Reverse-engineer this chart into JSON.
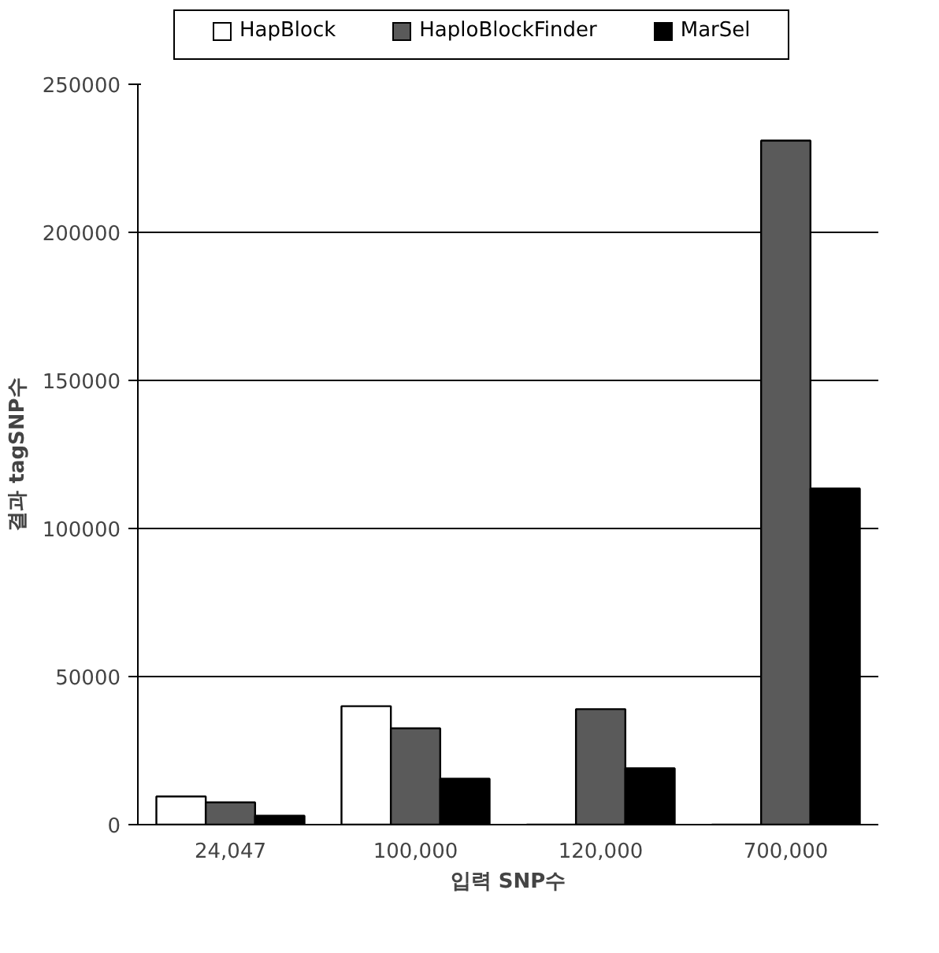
{
  "chart_data": {
    "type": "bar",
    "xlabel": "입력 SNP수",
    "ylabel": "결과 tagSNP수",
    "categories": [
      "24,047",
      "100,000",
      "120,000",
      "700,000"
    ],
    "series": [
      {
        "name": "HapBlock",
        "color": "#ffffff",
        "values": [
          9500,
          40000,
          null,
          null
        ]
      },
      {
        "name": "HaploBlockFinder",
        "color": "#5a5a5a",
        "values": [
          7500,
          32500,
          39000,
          231000
        ]
      },
      {
        "name": "MarSel",
        "color": "#000000",
        "values": [
          3000,
          15500,
          19000,
          113500
        ]
      }
    ],
    "ylim": [
      0,
      250000
    ],
    "yticks": [
      0,
      50000,
      100000,
      150000,
      200000,
      250000
    ],
    "grid": "y",
    "legend": "top"
  }
}
